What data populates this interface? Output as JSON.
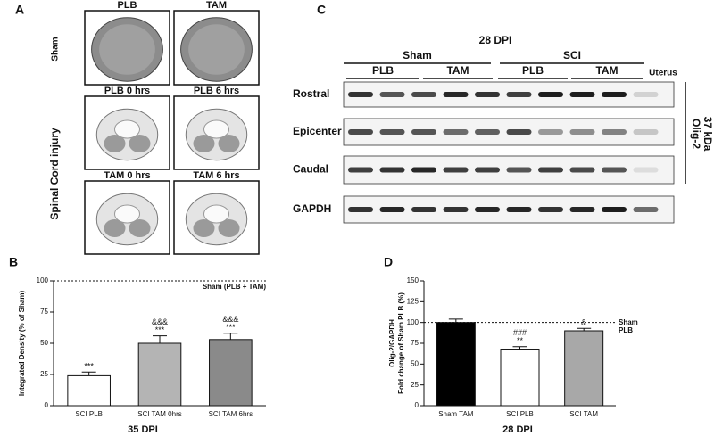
{
  "panel_a": {
    "label": "A",
    "row_labels": [
      "Sham",
      "Spinal Cord injury"
    ],
    "image_titles": [
      "PLB",
      "TAM",
      "PLB 0 hrs",
      "PLB 6 hrs",
      "TAM 0 hrs",
      "TAM 6 hrs"
    ]
  },
  "panel_c": {
    "label": "C",
    "title": "28 DPI",
    "groups": [
      "Sham",
      "SCI"
    ],
    "subgroups": [
      "PLB",
      "TAM",
      "PLB",
      "TAM"
    ],
    "extra_lane": "Uterus",
    "rows": [
      "Rostral",
      "Epicenter",
      "Caudal",
      "GAPDH"
    ],
    "side_label": [
      "Olig-2",
      "37 kDa"
    ]
  },
  "chart_data": [
    {
      "type": "bar",
      "panel_label": "B",
      "ylabel": "Integrated Density (% of Sham)",
      "xlabel": "35 DPI",
      "categories": [
        "SCI PLB",
        "SCI TAM 0hrs",
        "SCI TAM 6hrs"
      ],
      "values": [
        24,
        50,
        53
      ],
      "errors": [
        3,
        6,
        5
      ],
      "colors": [
        "#ffffff",
        "#b4b4b4",
        "#8a8a8a"
      ],
      "annotations": [
        [
          "***"
        ],
        [
          "&&&",
          "***"
        ],
        [
          "&&&",
          "***"
        ]
      ],
      "reference": {
        "value": 100,
        "label": [
          "Sham (PLB + TAM)"
        ]
      },
      "ylim": [
        0,
        100
      ],
      "yticks": [
        0,
        25,
        50,
        75,
        100
      ]
    },
    {
      "type": "bar",
      "panel_label": "D",
      "ylabel": [
        "Olig-2/GAPDH",
        "Fold change of Sham PLB (%)"
      ],
      "xlabel": "28 DPI",
      "categories": [
        "Sham TAM",
        "SCI PLB",
        "SCI TAM"
      ],
      "values": [
        100,
        68,
        90
      ],
      "errors": [
        4,
        3,
        3
      ],
      "colors": [
        "#000000",
        "#ffffff",
        "#a8a8a8"
      ],
      "annotations": [
        [],
        [
          "###",
          "**"
        ],
        [
          "&"
        ]
      ],
      "reference": {
        "value": 100,
        "label": [
          "Sham",
          "PLB"
        ]
      },
      "ylim": [
        0,
        150
      ],
      "yticks": [
        0,
        25,
        50,
        75,
        100,
        125,
        150
      ]
    }
  ]
}
